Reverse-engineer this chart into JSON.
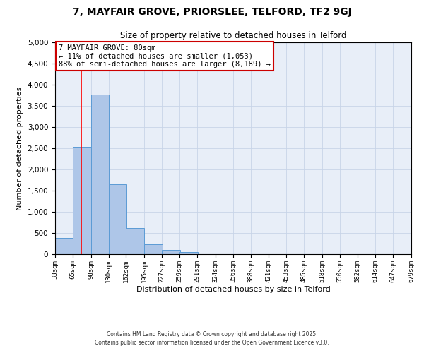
{
  "title1": "7, MAYFAIR GROVE, PRIORSLEE, TELFORD, TF2 9GJ",
  "title2": "Size of property relative to detached houses in Telford",
  "xlabel": "Distribution of detached houses by size in Telford",
  "ylabel": "Number of detached properties",
  "bar_left_edges": [
    33,
    65,
    98,
    130,
    162,
    195,
    227,
    259,
    291,
    324,
    356,
    388,
    421,
    453,
    485,
    518,
    550,
    582,
    614,
    647
  ],
  "bar_heights": [
    390,
    2540,
    3760,
    1650,
    620,
    240,
    100,
    45,
    0,
    0,
    0,
    0,
    0,
    0,
    0,
    0,
    0,
    0,
    0,
    0
  ],
  "bin_width": 33,
  "tick_labels": [
    "33sqm",
    "65sqm",
    "98sqm",
    "130sqm",
    "162sqm",
    "195sqm",
    "227sqm",
    "259sqm",
    "291sqm",
    "324sqm",
    "356sqm",
    "388sqm",
    "421sqm",
    "453sqm",
    "485sqm",
    "518sqm",
    "550sqm",
    "582sqm",
    "614sqm",
    "647sqm",
    "679sqm"
  ],
  "bar_color": "#aec6e8",
  "bar_edge_color": "#5b9bd5",
  "red_line_x": 80,
  "annotation_title": "7 MAYFAIR GROVE: 80sqm",
  "annotation_line1": "← 11% of detached houses are smaller (1,053)",
  "annotation_line2": "88% of semi-detached houses are larger (8,189) →",
  "annotation_box_color": "#ffffff",
  "annotation_box_edge": "#cc0000",
  "ylim": [
    0,
    5000
  ],
  "yticks": [
    0,
    500,
    1000,
    1500,
    2000,
    2500,
    3000,
    3500,
    4000,
    4500,
    5000
  ],
  "background_color": "#ffffff",
  "axes_background": "#e8eef8",
  "grid_color": "#c8d4e8",
  "footer1": "Contains HM Land Registry data © Crown copyright and database right 2025.",
  "footer2": "Contains public sector information licensed under the Open Government Licence v3.0."
}
